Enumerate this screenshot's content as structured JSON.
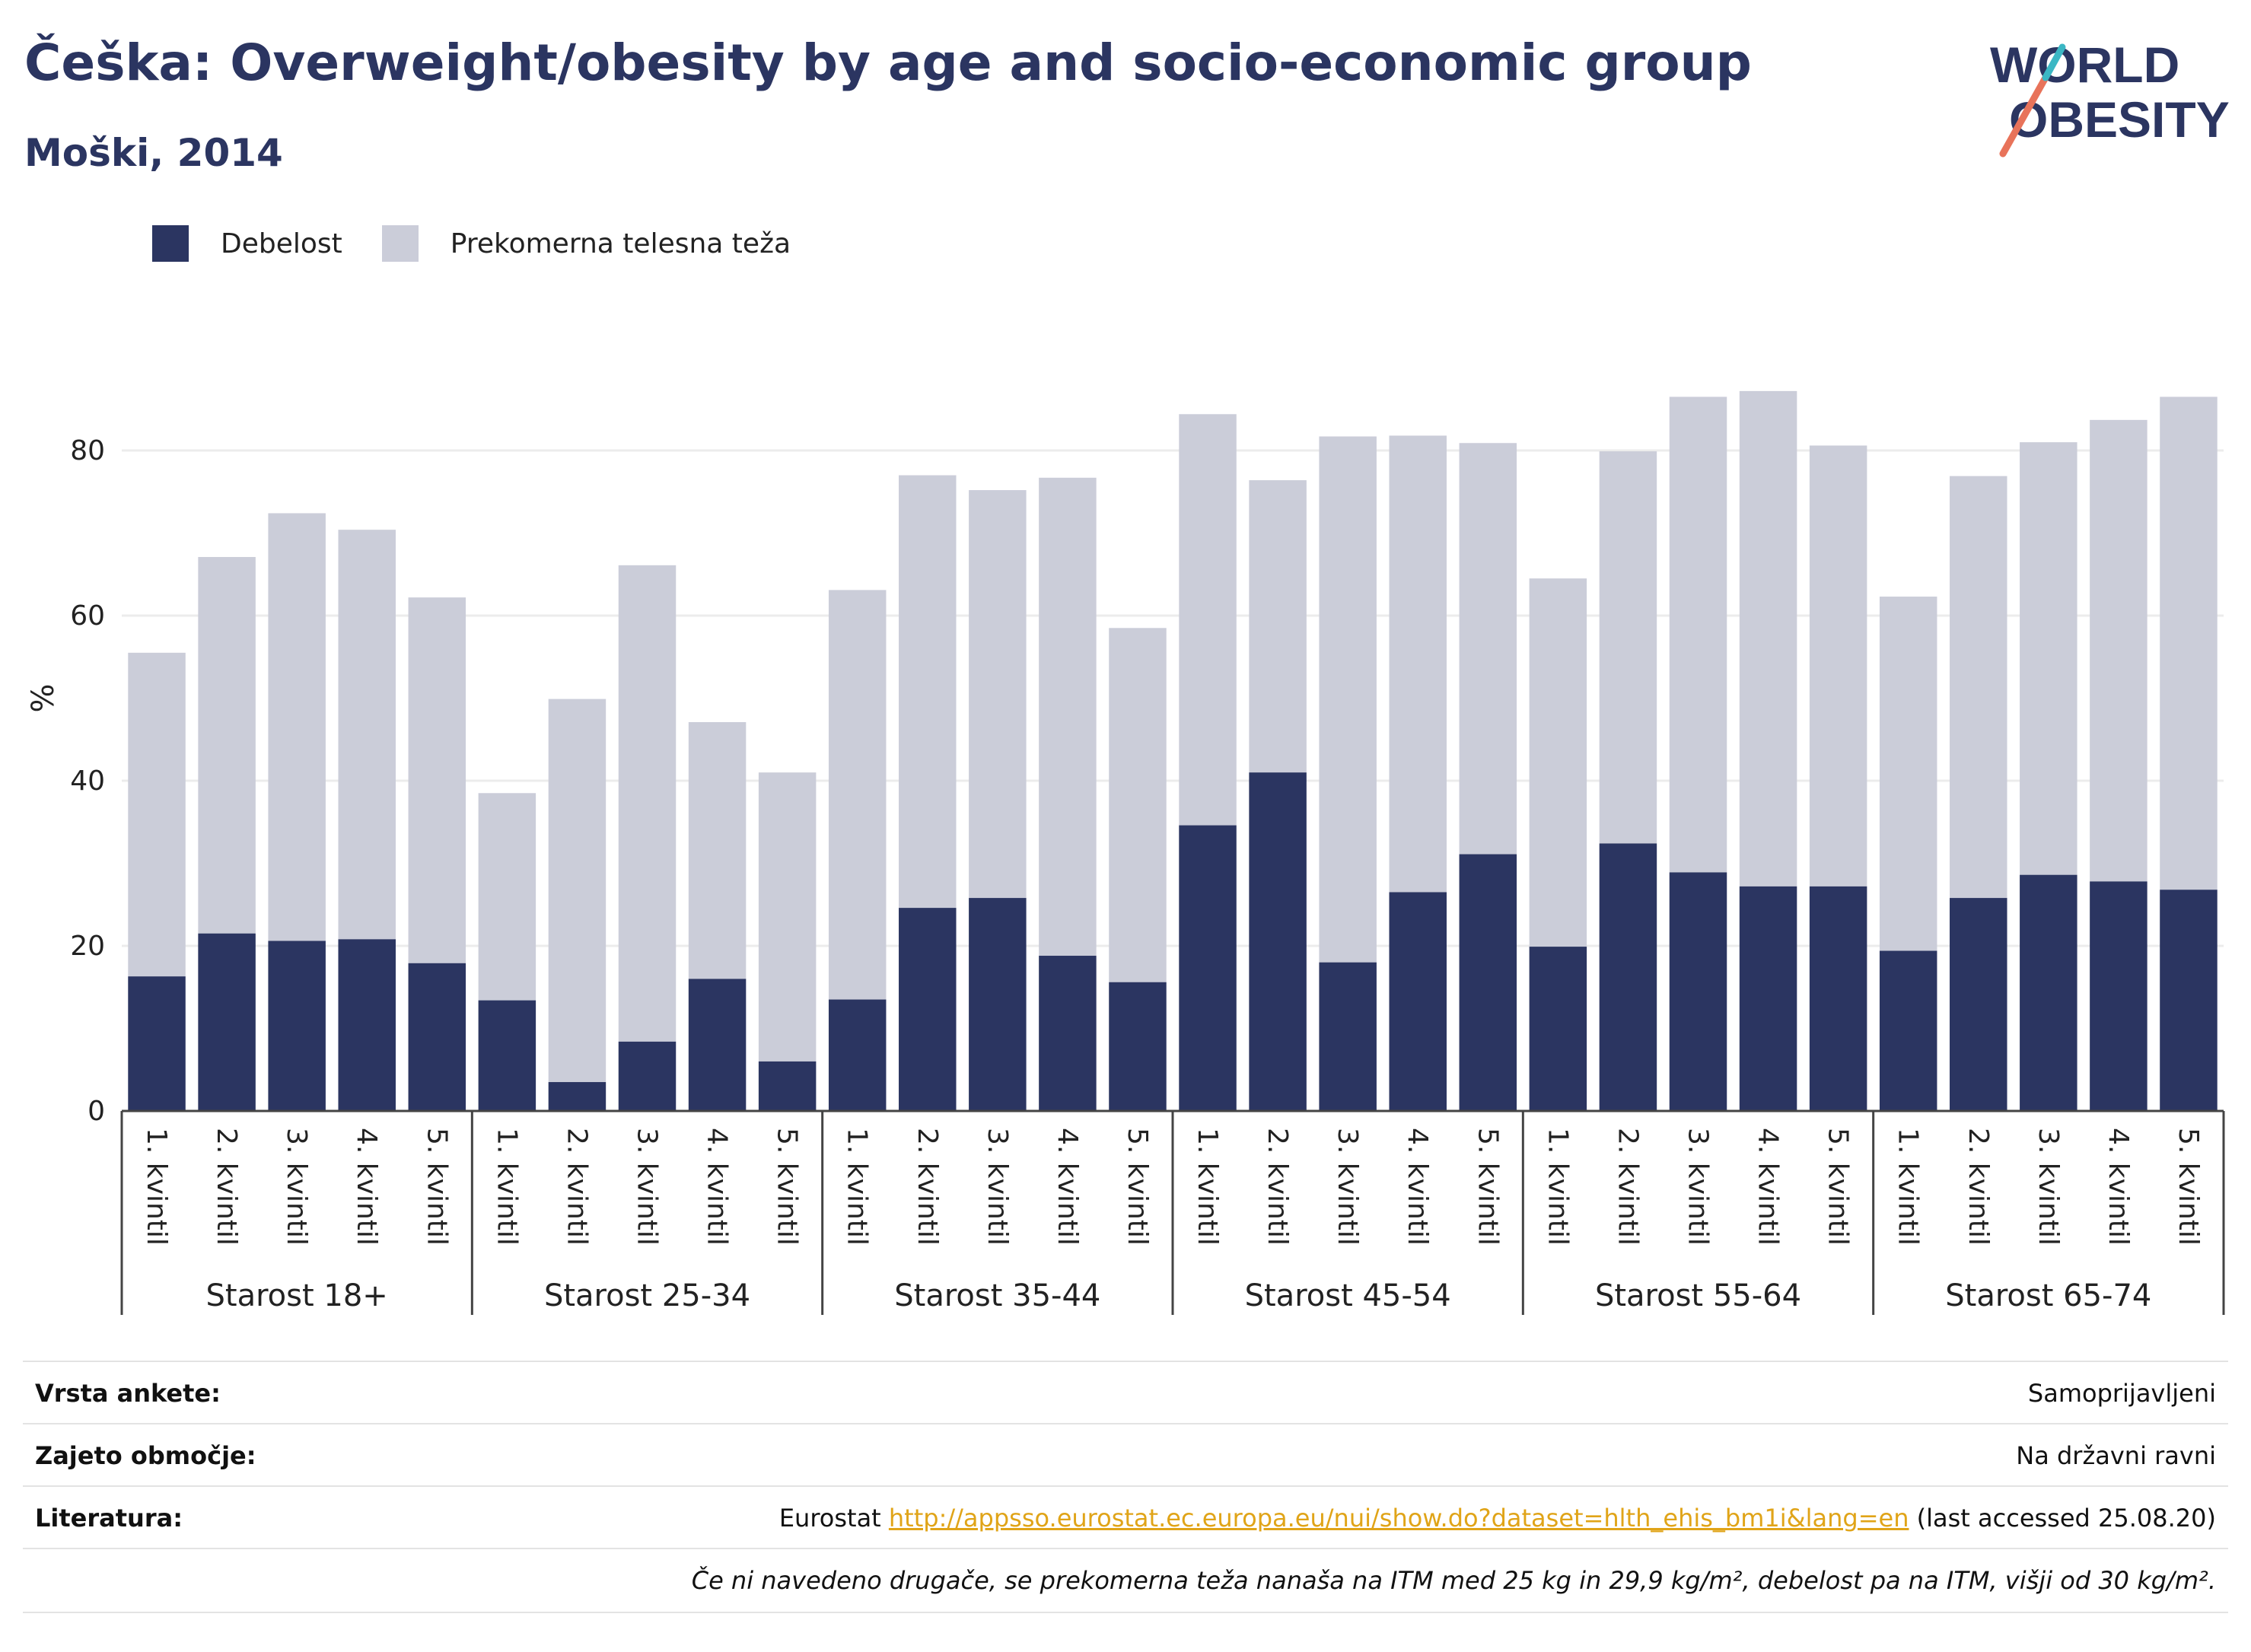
{
  "header": {
    "title": "Češka: Overweight/obesity by age and socio-economic group",
    "subtitle": "Moški, 2014"
  },
  "logo": {
    "line1": "WORLD",
    "line2": "OBESITY",
    "accent_colors": [
      "#e8735a",
      "#3bb7c4"
    ]
  },
  "colors": {
    "obesity": "#2b3561",
    "overweight": "#cbcdd9",
    "text": "#2b3561"
  },
  "chart_data": {
    "type": "bar",
    "stacked": true,
    "ylabel": "%",
    "ylim": [
      0,
      90
    ],
    "yticks": [
      0,
      20,
      40,
      60,
      80
    ],
    "grid": true,
    "legend_position": "top-left",
    "groups": [
      "Starost 18+",
      "Starost 25-34",
      "Starost 35-44",
      "Starost 45-54",
      "Starost 55-64",
      "Starost 65-74"
    ],
    "categories": [
      "1. kvintil",
      "2. kvintil",
      "3. kvintil",
      "4. kvintil",
      "5. kvintil"
    ],
    "series": [
      {
        "name": "Debelost",
        "color": "#2b3561",
        "values": [
          [
            16.3,
            21.5,
            20.6,
            20.8,
            17.9
          ],
          [
            13.4,
            3.5,
            8.4,
            16.0,
            6.0
          ],
          [
            13.5,
            24.6,
            25.8,
            18.8,
            15.6
          ],
          [
            34.6,
            41.0,
            18.0,
            26.5,
            31.1
          ],
          [
            19.9,
            32.4,
            28.9,
            27.2,
            27.2
          ],
          [
            19.4,
            25.8,
            28.6,
            27.8,
            26.8
          ]
        ]
      },
      {
        "name": "Prekomerna telesna teža",
        "color": "#cbcdd9",
        "values": [
          [
            39.2,
            45.6,
            51.8,
            49.6,
            44.3
          ],
          [
            25.1,
            46.4,
            57.7,
            31.1,
            35.0
          ],
          [
            49.6,
            52.4,
            49.4,
            57.9,
            42.9
          ],
          [
            49.8,
            35.4,
            63.7,
            55.3,
            49.8
          ],
          [
            44.6,
            47.5,
            57.6,
            60.0,
            53.4
          ],
          [
            42.9,
            51.1,
            52.4,
            55.9,
            59.7
          ]
        ]
      }
    ]
  },
  "meta": {
    "survey_label": "Vrsta ankete:",
    "survey_value": "Samoprijavljeni",
    "coverage_label": "Zajeto območje:",
    "coverage_value": "Na državni ravni",
    "refs_label": "Literatura:",
    "refs_prefix": "Eurostat",
    "refs_link": "http://appsso.eurostat.ec.europa.eu/nui/show.do?dataset=hlth_ehis_bm1i&lang=en",
    "refs_suffix": "(last accessed 25.08.20)",
    "note": "Če ni navedeno drugače, se prekomerna teža nanaša na ITM med 25 kg in 29,9 kg/m², debelost pa na ITM, višji od 30 kg/m²."
  }
}
